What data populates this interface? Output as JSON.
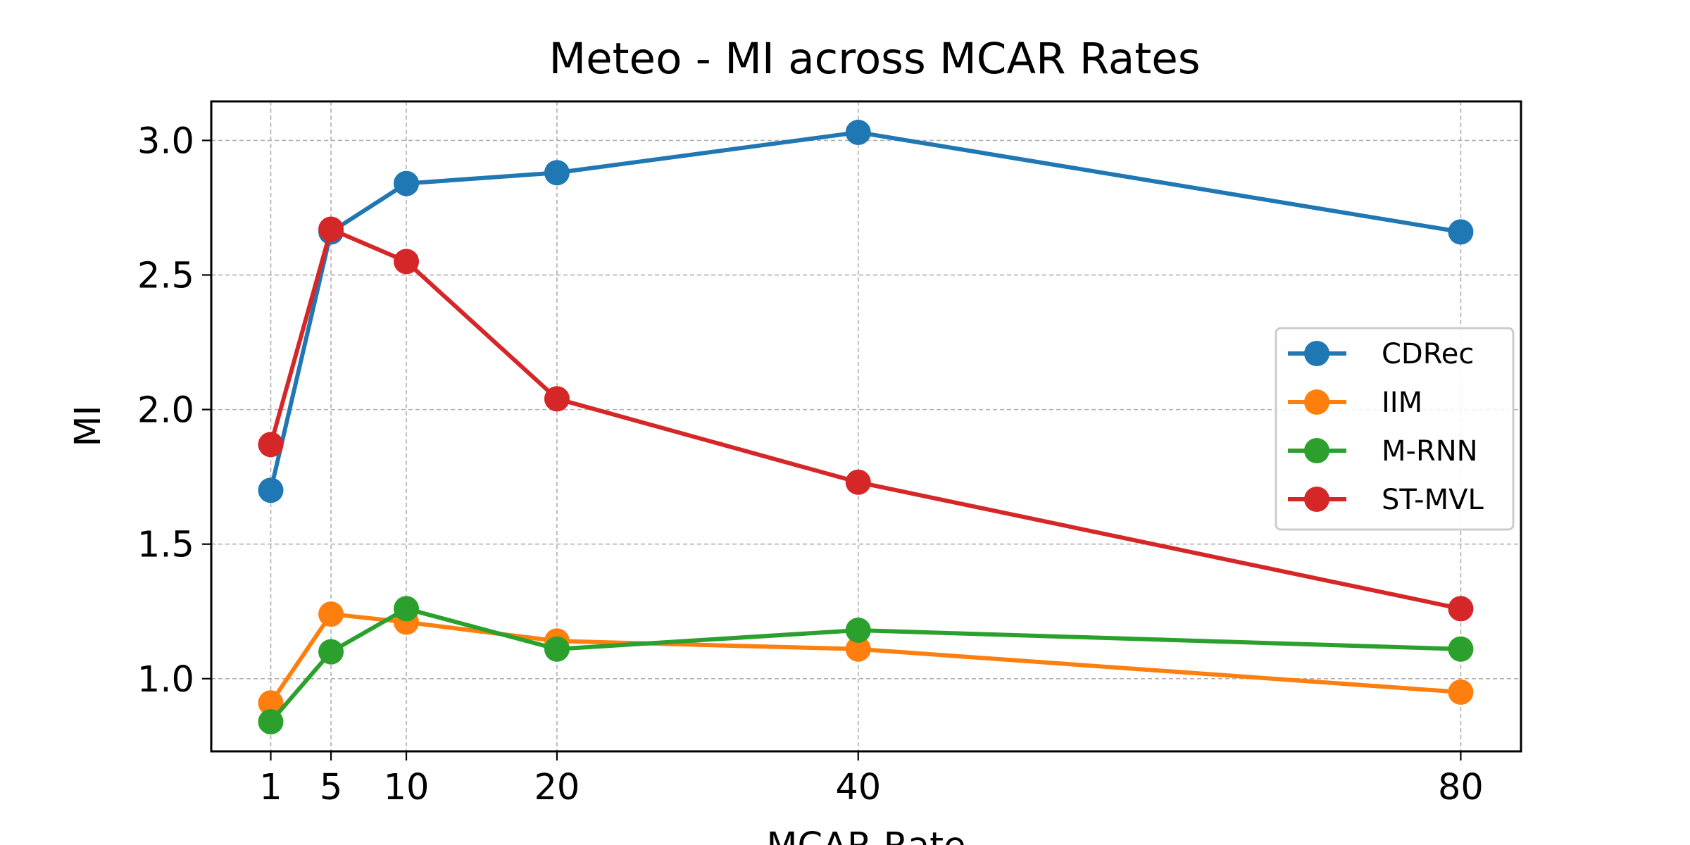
{
  "chart_data": {
    "type": "line",
    "title": "Meteo - MI across MCAR Rates",
    "xlabel": "MCAR Rate",
    "ylabel": "MI",
    "x": [
      1,
      5,
      10,
      20,
      40,
      80
    ],
    "xticks": [
      "1",
      "5",
      "10",
      "20",
      "40",
      "80"
    ],
    "xlim": [
      -2.95,
      84
    ],
    "ylim": [
      0.73,
      3.145
    ],
    "yticks": [
      "1.0",
      "1.5",
      "2.0",
      "2.5",
      "3.0"
    ],
    "ytick_values": [
      1.0,
      1.5,
      2.0,
      2.5,
      3.0
    ],
    "grid": true,
    "legend_position": "center-right",
    "series": [
      {
        "name": "CDRec",
        "color": "#1f77b4",
        "values": [
          1.7,
          2.66,
          2.84,
          2.88,
          3.03,
          2.66
        ]
      },
      {
        "name": "IIM",
        "color": "#ff7f0e",
        "values": [
          0.91,
          1.24,
          1.21,
          1.14,
          1.11,
          0.95
        ]
      },
      {
        "name": "M-RNN",
        "color": "#2ca02c",
        "values": [
          0.84,
          1.1,
          1.26,
          1.11,
          1.18,
          1.11
        ]
      },
      {
        "name": "ST-MVL",
        "color": "#d62728",
        "values": [
          1.87,
          2.67,
          2.55,
          2.04,
          1.73,
          1.26
        ]
      }
    ]
  }
}
